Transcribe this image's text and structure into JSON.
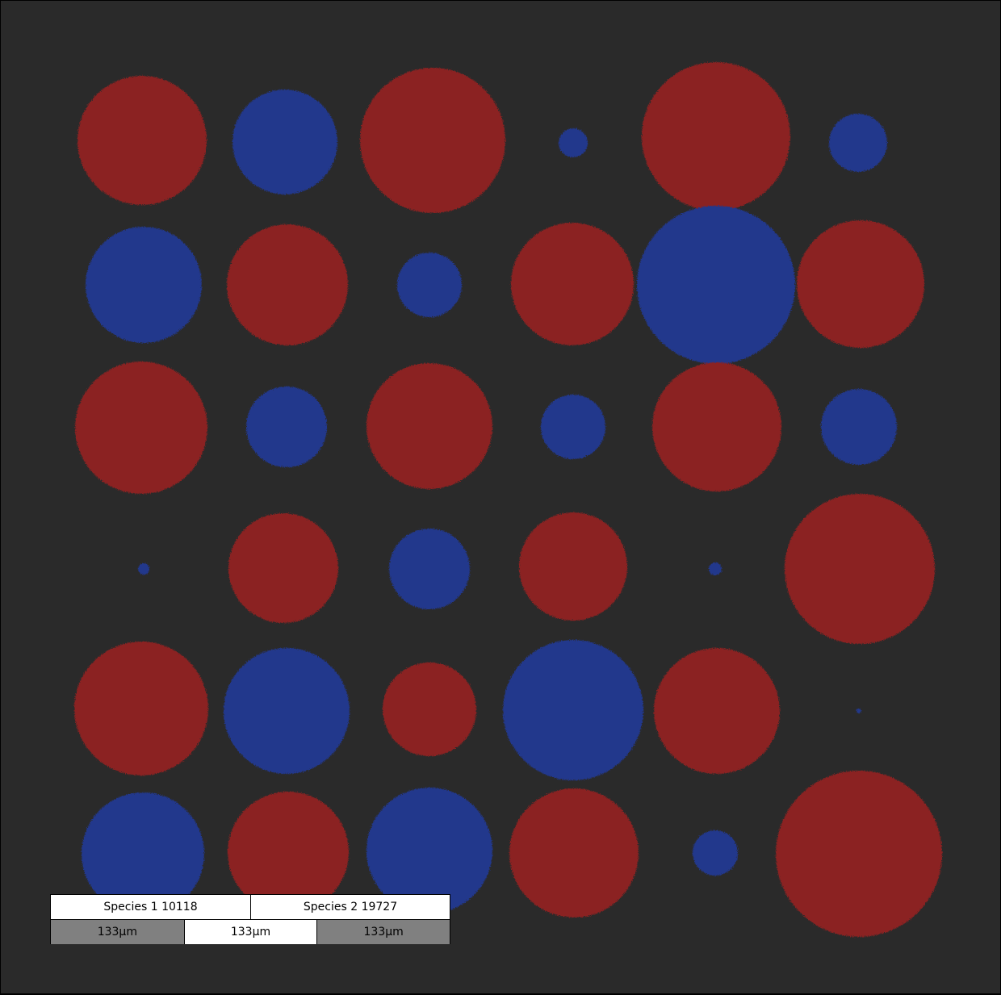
{
  "colors": {
    "background": "#2a2a2a",
    "species1": "#8b2323",
    "species2": "#22378c"
  },
  "colonies_description": "Grid of 6x6 circular bacterial colonies, red (species 1) and blue (species 2), varying in size",
  "legend": {
    "species1_label": "Species 1 10118",
    "species2_label": "Species 2 19727",
    "scale_labels": [
      "133µm",
      "133µm",
      "133µm"
    ]
  }
}
